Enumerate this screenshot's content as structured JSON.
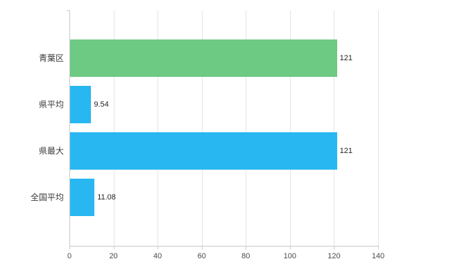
{
  "chart_data": {
    "type": "bar",
    "orientation": "horizontal",
    "title": "",
    "xlabel": "",
    "ylabel": "",
    "categories": [
      "青葉区",
      "県平均",
      "県最大",
      "全国平均"
    ],
    "values": [
      121,
      9.54,
      121,
      11.08
    ],
    "value_labels": [
      "121",
      "9.54",
      "121",
      "11.08"
    ],
    "bar_colors": [
      "#6dca82",
      "#29b7f2",
      "#29b7f2",
      "#29b7f2"
    ],
    "xlim": [
      0,
      140
    ],
    "x_ticks": [
      0,
      20,
      40,
      60,
      80,
      100,
      120,
      140
    ],
    "grid": true,
    "legend": "none"
  },
  "colors": {
    "background": "#ffffff",
    "grid": "#e4e4e4",
    "axis": "#c8c8c8",
    "tick_text": "#4a4a4a",
    "category_text": "#3a3a3a",
    "value_text": "#1f1f1f"
  }
}
